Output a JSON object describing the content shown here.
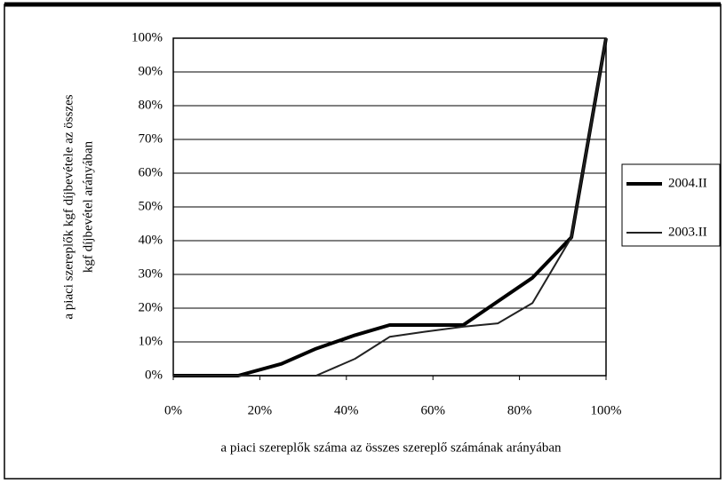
{
  "chart_data": {
    "type": "line",
    "x_label": "a piaci szereplők száma az összes szereplő számának arányában",
    "y_label": [
      "a piaci szereplők kgf díjbevétele az összes",
      "kgf díjbevétel arányában"
    ],
    "series": [
      {
        "name": "2004.II",
        "color": "#000000",
        "width": 4,
        "x": [
          0,
          15,
          25,
          33,
          42,
          50,
          58,
          67,
          75,
          83,
          92,
          100
        ],
        "values": [
          0,
          0,
          3.5,
          8,
          12,
          15,
          15,
          15,
          22,
          29,
          41,
          100
        ]
      },
      {
        "name": "2003.II",
        "color": "#222222",
        "width": 2,
        "x": [
          0,
          33,
          42,
          50,
          58,
          67,
          75,
          83,
          92,
          100
        ],
        "values": [
          0,
          0,
          5,
          11.5,
          13,
          14.5,
          15.5,
          21.5,
          41,
          100
        ]
      }
    ],
    "xlim": [
      0,
      100
    ],
    "xticks": [
      {
        "value": 0,
        "label": "0%"
      },
      {
        "value": 20,
        "label": "20%"
      },
      {
        "value": 40,
        "label": "40%"
      },
      {
        "value": 60,
        "label": "60%"
      },
      {
        "value": 80,
        "label": "80%"
      },
      {
        "value": 100,
        "label": "100%"
      }
    ],
    "ylim": [
      0,
      100
    ],
    "yticks": [
      {
        "value": 0,
        "label": "0%"
      },
      {
        "value": 10,
        "label": "10%"
      },
      {
        "value": 20,
        "label": "20%"
      },
      {
        "value": 30,
        "label": "30%"
      },
      {
        "value": 40,
        "label": "40%"
      },
      {
        "value": 50,
        "label": "50%"
      },
      {
        "value": 60,
        "label": "60%"
      },
      {
        "value": 70,
        "label": "70%"
      },
      {
        "value": 80,
        "label": "80%"
      },
      {
        "value": 90,
        "label": "90%"
      },
      {
        "value": 100,
        "label": "100%"
      }
    ],
    "grid": true,
    "legend": "right"
  }
}
